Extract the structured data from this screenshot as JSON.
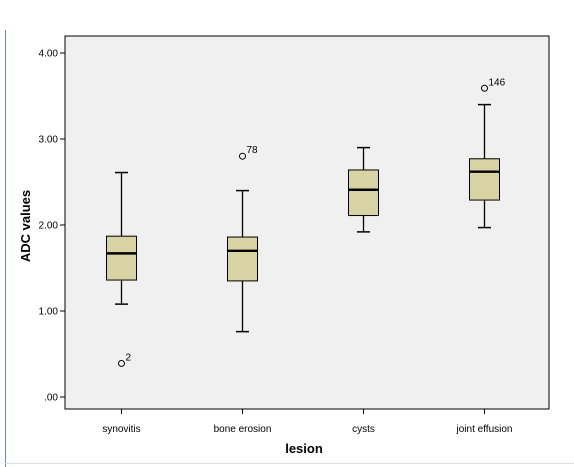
{
  "chart_data": {
    "type": "boxplot",
    "xlabel": "lesion",
    "ylabel": "ADC values",
    "ylim": [
      0,
      4
    ],
    "yticks": [
      ".00",
      "1.00",
      "2.00",
      "3.00",
      "4.00"
    ],
    "ytick_values": [
      0,
      1,
      2,
      3,
      4
    ],
    "grid": false,
    "plot_background": "#f0f0f0",
    "box_color": "#d8d3a3",
    "categories": [
      "synovitis",
      "bone erosion",
      "cysts",
      "joint effusion"
    ],
    "boxes": [
      {
        "category": "synovitis",
        "min": 1.08,
        "q1": 1.36,
        "median": 1.67,
        "q3": 1.87,
        "max": 2.61,
        "outliers": [
          {
            "value": 0.39,
            "label": "2"
          }
        ]
      },
      {
        "category": "bone erosion",
        "min": 0.76,
        "q1": 1.35,
        "median": 1.7,
        "q3": 1.86,
        "max": 2.4,
        "outliers": [
          {
            "value": 2.8,
            "label": "78"
          }
        ]
      },
      {
        "category": "cysts",
        "min": 1.92,
        "q1": 2.11,
        "median": 2.41,
        "q3": 2.64,
        "max": 2.9,
        "outliers": []
      },
      {
        "category": "joint effusion",
        "min": 1.97,
        "q1": 2.29,
        "median": 2.62,
        "q3": 2.77,
        "max": 3.4,
        "outliers": [
          {
            "value": 3.59,
            "label": "146"
          }
        ]
      }
    ]
  }
}
